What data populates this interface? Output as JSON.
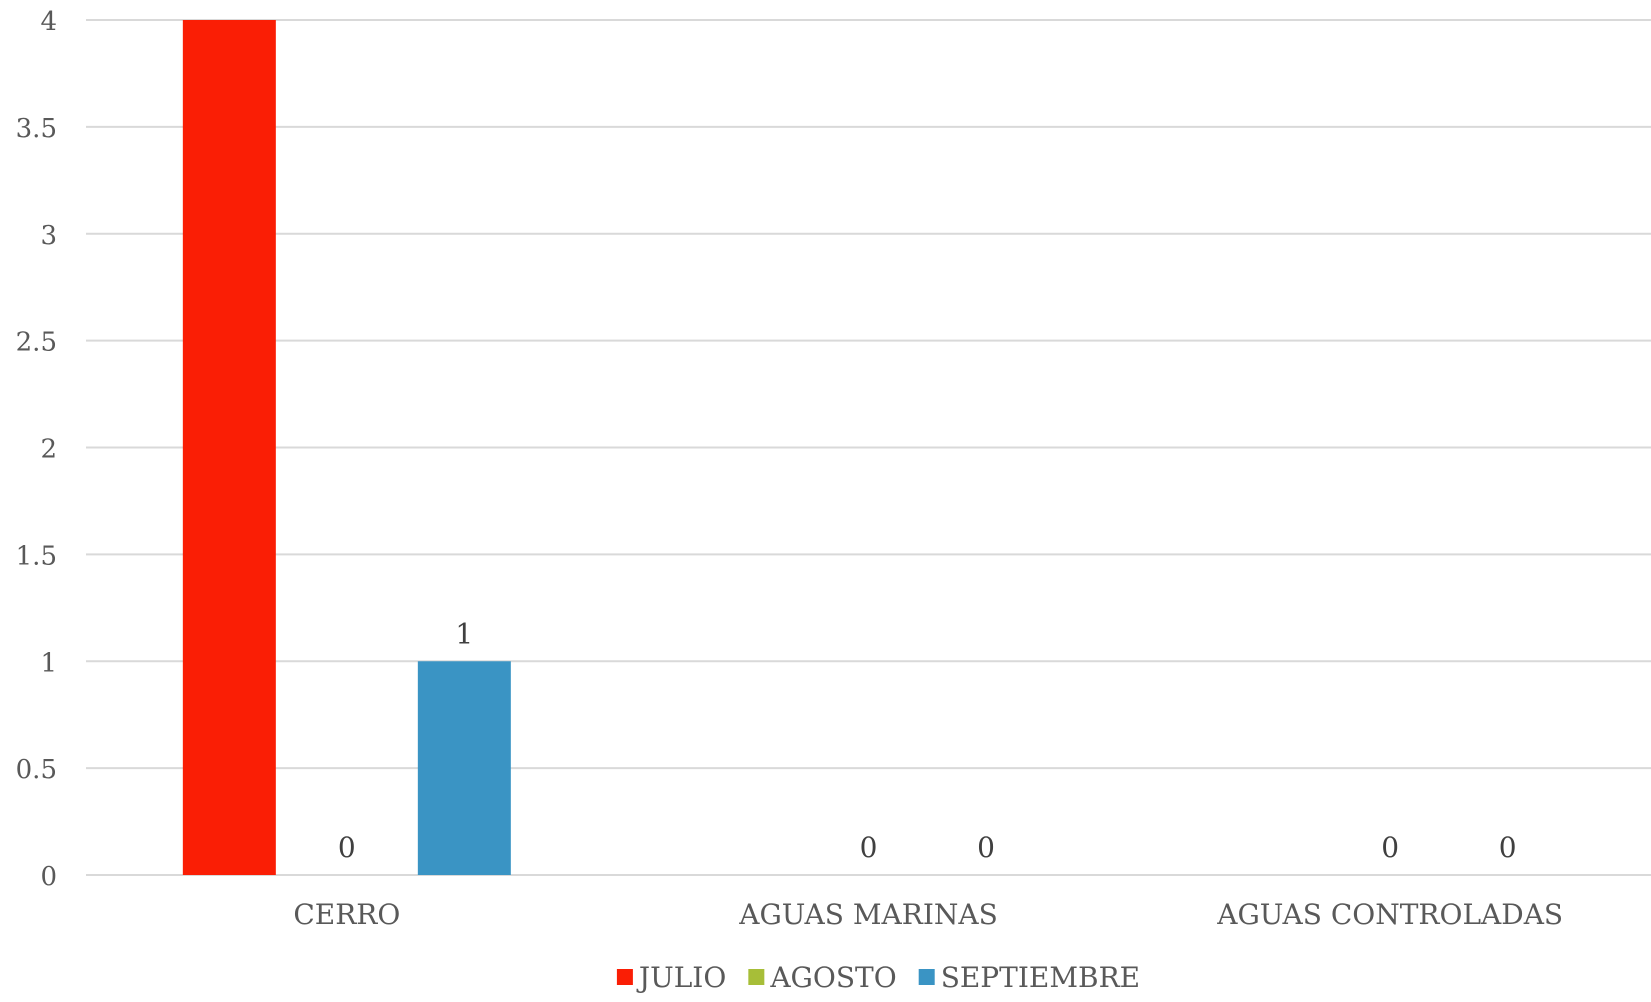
{
  "chart_data": {
    "type": "bar",
    "title": "",
    "xlabel": "",
    "ylabel": "",
    "categories": [
      "CERRO",
      "AGUAS MARINAS",
      "AGUAS CONTROLADAS"
    ],
    "series": [
      {
        "name": "JULIO",
        "color": "#FA1E05",
        "values": [
          4,
          null,
          null
        ],
        "data_labels": [
          null,
          null,
          null
        ]
      },
      {
        "name": "AGOSTO",
        "color": "#A7BE38",
        "values": [
          0,
          0,
          0
        ],
        "data_labels": [
          "0",
          "0",
          "0"
        ]
      },
      {
        "name": "SEPTIEMBRE",
        "color": "#3A94C4",
        "values": [
          1,
          0,
          0
        ],
        "data_labels": [
          "1",
          "0",
          "0"
        ]
      }
    ],
    "ylim": [
      0,
      4
    ],
    "yticks": [
      0,
      0.5,
      1,
      1.5,
      2,
      2.5,
      3,
      3.5,
      4
    ],
    "ytick_labels": [
      "0",
      "0.5",
      "1",
      "1.5",
      "2",
      "2.5",
      "3",
      "3.5",
      "4"
    ],
    "grid": true,
    "legend_position": "bottom",
    "colors": {
      "grid": "#D9D9D9",
      "axis_text": "#595959",
      "data_label": "#404040"
    }
  }
}
